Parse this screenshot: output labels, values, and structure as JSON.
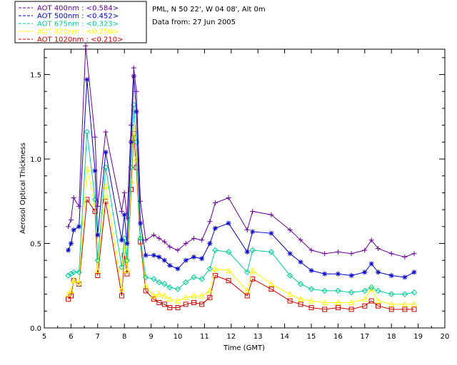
{
  "chart_data": {
    "type": "scatter",
    "title_lines": [
      "PML, N 50 22', W 04 08', Alt 0m",
      "Data from: 27 Jun 2005"
    ],
    "xlabel": "Time (GMT)",
    "ylabel": "Aerosol Optical Thickness",
    "xlim": [
      5,
      20
    ],
    "ylim": [
      0,
      1.65
    ],
    "xticks": [
      5,
      6,
      7,
      8,
      9,
      10,
      11,
      12,
      13,
      14,
      15,
      16,
      17,
      18,
      19,
      20
    ],
    "yticks": [
      0.0,
      0.5,
      1.0,
      1.5
    ],
    "ytick_labels": [
      "0.0",
      "0.5",
      "1.0",
      "1.5"
    ],
    "legend_position": "top-left, outside plot",
    "series": [
      {
        "name": "AOT  400nm : <0.584>",
        "color": "#660099",
        "marker": "plus",
        "x": [
          5.9,
          6.0,
          6.1,
          6.3,
          6.55,
          6.9,
          7.0,
          7.3,
          7.9,
          8.0,
          8.1,
          8.25,
          8.35,
          8.45,
          8.6,
          8.8,
          9.1,
          9.3,
          9.5,
          9.7,
          10.0,
          10.3,
          10.6,
          10.9,
          11.2,
          11.4,
          11.9,
          12.6,
          12.8,
          13.5,
          14.2,
          14.6,
          15.0,
          15.5,
          16.0,
          16.5,
          17.0,
          17.25,
          17.5,
          18.0,
          18.5,
          18.85
        ],
        "y": [
          0.6,
          0.64,
          0.77,
          0.72,
          1.67,
          1.13,
          0.72,
          1.16,
          0.69,
          0.8,
          0.65,
          1.2,
          1.54,
          1.4,
          0.75,
          0.52,
          0.55,
          0.53,
          0.51,
          0.48,
          0.46,
          0.5,
          0.53,
          0.52,
          0.63,
          0.74,
          0.77,
          0.58,
          0.69,
          0.67,
          0.58,
          0.52,
          0.46,
          0.44,
          0.45,
          0.44,
          0.46,
          0.52,
          0.47,
          0.44,
          0.42,
          0.44
        ]
      },
      {
        "name": "AOT  500nm : <0.452>",
        "color": "#0000cc",
        "marker": "asterisk",
        "x": [
          5.9,
          6.0,
          6.1,
          6.3,
          6.6,
          6.9,
          7.0,
          7.3,
          7.9,
          8.0,
          8.1,
          8.25,
          8.35,
          8.45,
          8.6,
          8.8,
          9.1,
          9.3,
          9.5,
          9.7,
          10.0,
          10.3,
          10.6,
          10.9,
          11.2,
          11.4,
          11.9,
          12.6,
          12.8,
          13.5,
          14.2,
          14.6,
          15.0,
          15.5,
          16.0,
          16.5,
          17.0,
          17.25,
          17.5,
          18.0,
          18.5,
          18.85
        ],
        "y": [
          0.46,
          0.5,
          0.58,
          0.6,
          1.47,
          0.93,
          0.55,
          1.04,
          0.52,
          0.67,
          0.5,
          1.1,
          1.49,
          1.28,
          0.62,
          0.43,
          0.43,
          0.42,
          0.4,
          0.37,
          0.35,
          0.4,
          0.42,
          0.41,
          0.5,
          0.59,
          0.62,
          0.45,
          0.57,
          0.56,
          0.44,
          0.39,
          0.34,
          0.32,
          0.32,
          0.31,
          0.33,
          0.38,
          0.33,
          0.31,
          0.3,
          0.33
        ]
      },
      {
        "name": "AOT  675nm : <0.323>",
        "color": "#00cc99",
        "marker": "diamond",
        "x": [
          5.9,
          6.0,
          6.1,
          6.3,
          6.6,
          6.9,
          7.0,
          7.3,
          7.9,
          8.0,
          8.1,
          8.25,
          8.35,
          8.45,
          8.6,
          8.8,
          9.1,
          9.3,
          9.5,
          9.7,
          10.0,
          10.3,
          10.6,
          10.9,
          11.2,
          11.4,
          11.9,
          12.6,
          12.8,
          13.5,
          14.2,
          14.6,
          15.0,
          15.5,
          16.0,
          16.5,
          17.0,
          17.25,
          17.5,
          18.0,
          18.5,
          18.85
        ],
        "y": [
          0.31,
          0.32,
          0.33,
          0.33,
          1.16,
          0.76,
          0.4,
          0.95,
          0.36,
          0.53,
          0.4,
          0.95,
          1.32,
          1.1,
          0.53,
          0.3,
          0.29,
          0.27,
          0.26,
          0.24,
          0.23,
          0.27,
          0.3,
          0.29,
          0.35,
          0.46,
          0.45,
          0.33,
          0.46,
          0.45,
          0.31,
          0.26,
          0.23,
          0.22,
          0.22,
          0.21,
          0.22,
          0.24,
          0.22,
          0.2,
          0.2,
          0.21
        ]
      },
      {
        "name": "AOT  870nm : <0.250>",
        "color": "#ffff00",
        "marker": "triangle",
        "x": [
          5.9,
          6.0,
          6.1,
          6.3,
          6.6,
          6.9,
          7.0,
          7.3,
          7.9,
          8.0,
          8.1,
          8.25,
          8.35,
          8.45,
          8.6,
          8.8,
          9.1,
          9.3,
          9.5,
          9.7,
          10.0,
          10.3,
          10.6,
          10.9,
          11.2,
          11.4,
          11.9,
          12.6,
          12.8,
          13.5,
          14.2,
          14.6,
          15.0,
          15.5,
          16.0,
          16.5,
          17.0,
          17.25,
          17.5,
          18.0,
          18.5,
          18.85
        ],
        "y": [
          0.2,
          0.22,
          0.28,
          0.27,
          0.94,
          0.74,
          0.34,
          0.84,
          0.23,
          0.48,
          0.34,
          0.87,
          1.19,
          1.0,
          0.54,
          0.25,
          0.19,
          0.2,
          0.19,
          0.17,
          0.16,
          0.18,
          0.19,
          0.19,
          0.22,
          0.35,
          0.34,
          0.22,
          0.34,
          0.26,
          0.2,
          0.17,
          0.16,
          0.15,
          0.15,
          0.15,
          0.17,
          0.23,
          0.16,
          0.14,
          0.14,
          0.14
        ]
      },
      {
        "name": "AOT 1020nm : <0.210>",
        "color": "#cc0000",
        "marker": "square",
        "x": [
          5.9,
          6.0,
          6.1,
          6.3,
          6.6,
          6.9,
          7.0,
          7.3,
          7.9,
          8.0,
          8.1,
          8.25,
          8.35,
          8.45,
          8.6,
          8.8,
          9.1,
          9.3,
          9.5,
          9.7,
          10.0,
          10.3,
          10.6,
          10.9,
          11.2,
          11.4,
          11.9,
          12.6,
          12.8,
          13.5,
          14.2,
          14.6,
          15.0,
          15.5,
          16.0,
          16.5,
          17.0,
          17.25,
          17.5,
          18.0,
          18.5,
          18.85
        ],
        "y": [
          0.17,
          0.19,
          0.28,
          0.26,
          0.76,
          0.69,
          0.31,
          0.75,
          0.19,
          0.43,
          0.32,
          0.82,
          1.15,
          0.95,
          0.51,
          0.22,
          0.17,
          0.15,
          0.14,
          0.12,
          0.12,
          0.14,
          0.15,
          0.14,
          0.18,
          0.31,
          0.28,
          0.19,
          0.29,
          0.23,
          0.16,
          0.14,
          0.12,
          0.11,
          0.12,
          0.11,
          0.13,
          0.16,
          0.13,
          0.11,
          0.11,
          0.11
        ]
      }
    ]
  }
}
